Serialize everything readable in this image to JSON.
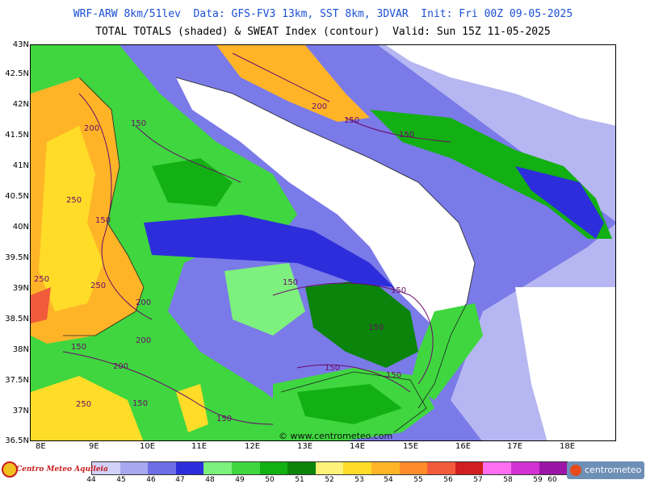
{
  "header": {
    "line1": "WRF-ARW 8km/51lev  Data: GFS-FV3 13km, SST 8km, 3DVAR  Init: Fri 00Z 09-05-2025",
    "line2": "TOTAL TOTALS (shaded) & SWEAT Index (contour)  Valid: Sun 15Z 11-05-2025"
  },
  "axes": {
    "latitudes": [
      "43N",
      "42.5N",
      "42N",
      "41.5N",
      "41N",
      "40.5N",
      "40N",
      "39.5N",
      "39N",
      "38.5N",
      "38N",
      "37.5N",
      "37N",
      "36.5N"
    ],
    "longitudes": [
      "8E",
      "9E",
      "10E",
      "11E",
      "12E",
      "13E",
      "14E",
      "15E",
      "16E",
      "17E",
      "18E"
    ]
  },
  "contour_labels": [
    "200",
    "150",
    "250",
    "150",
    "250",
    "250",
    "200",
    "150",
    "200",
    "200",
    "150",
    "250",
    "150",
    "150",
    "200",
    "150",
    "150",
    "150",
    "150",
    "150",
    "150"
  ],
  "watermark": "© www.centrometeo.com",
  "legend": {
    "ticks": [
      "44",
      "45",
      "46",
      "47",
      "48",
      "49",
      "50",
      "51",
      "52",
      "53",
      "54",
      "55",
      "56",
      "57",
      "58",
      "59",
      "60"
    ],
    "colors": [
      "#d2d2f8",
      "#a8a8f0",
      "#6e6ee6",
      "#2d2ddc",
      "#7df07d",
      "#3fd63f",
      "#12b012",
      "#0a840a",
      "#fff27a",
      "#ffdc28",
      "#ffb428",
      "#ff8c28",
      "#f25a3c",
      "#d21e1e",
      "#ff6ef0",
      "#d232d2",
      "#9b14a5"
    ]
  },
  "logos": {
    "left": "Centro Meteo Aquileia",
    "right": "centrometeo"
  },
  "colors": {
    "title_blue": "#1a4fd6",
    "sea_blue": "#7a7ae8",
    "land_white": "#ffffff",
    "contour_purple": "#6a0a6a"
  }
}
